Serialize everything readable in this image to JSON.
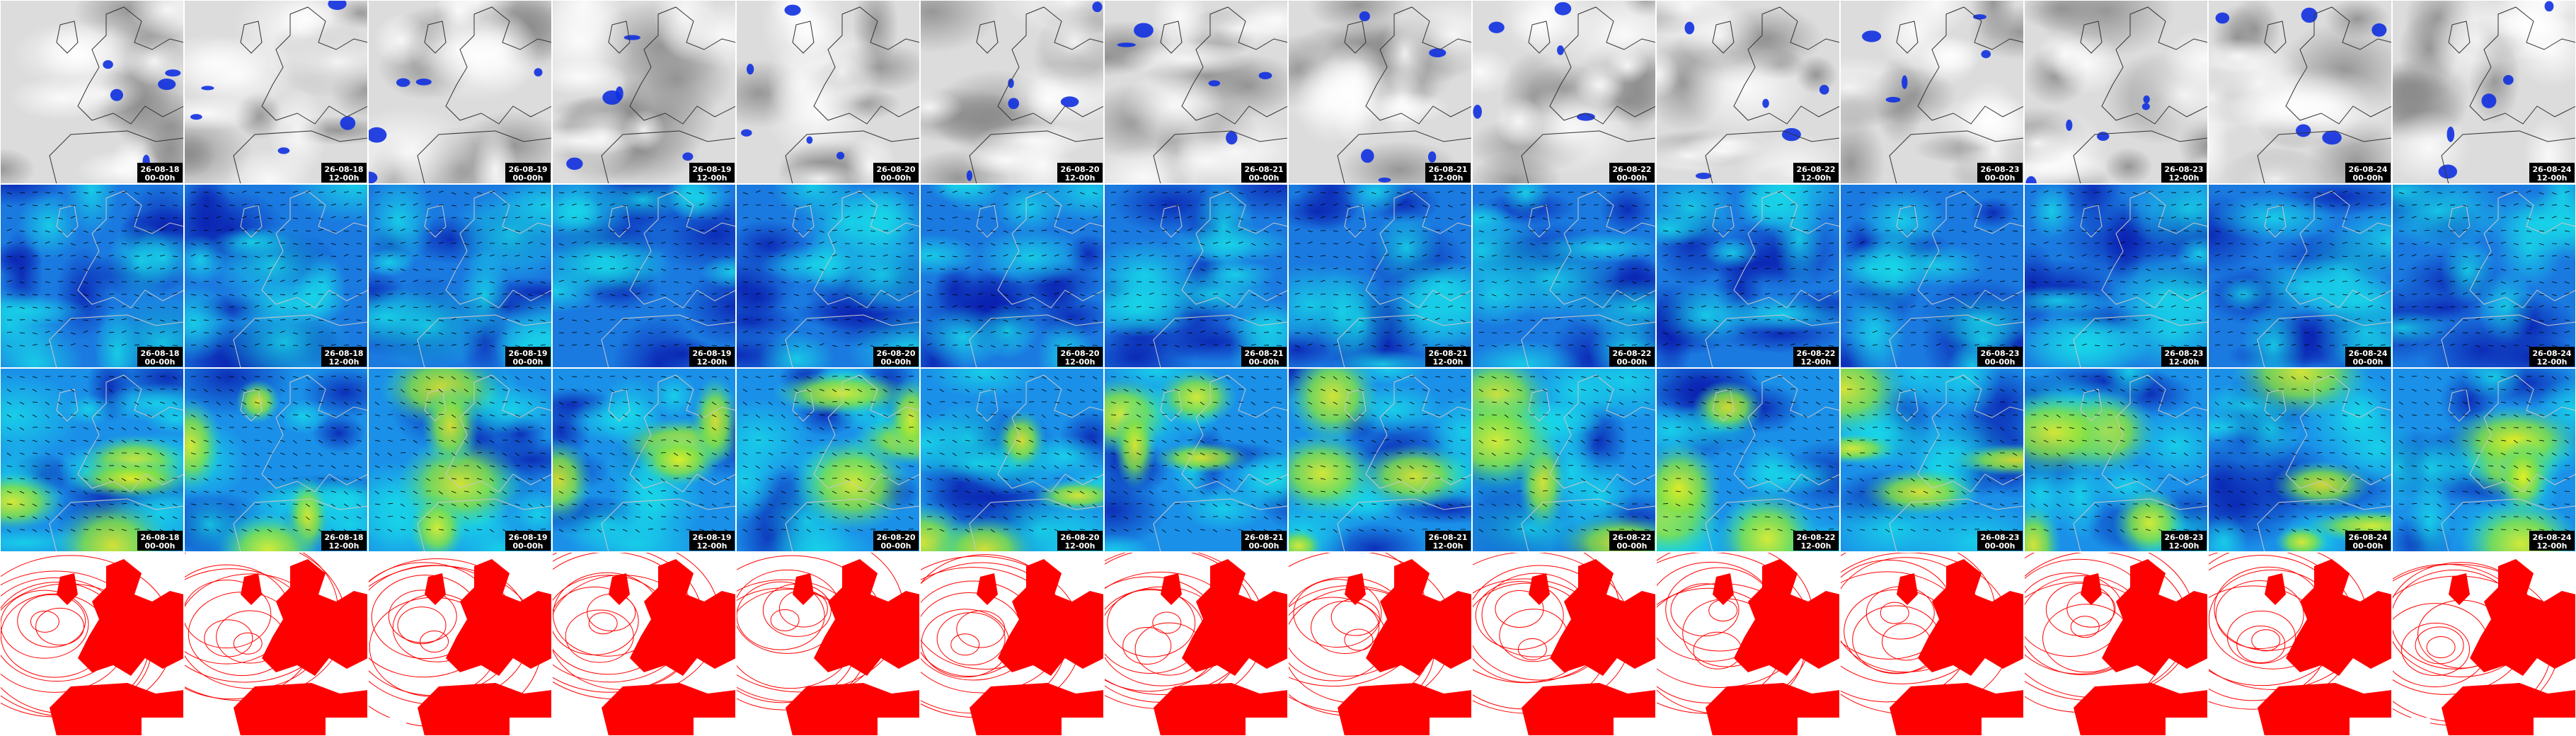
{
  "tiles": {
    "columns": [
      {
        "date": "26-08-18",
        "time": "00-00h"
      },
      {
        "date": "26-08-18",
        "time": "12-00h"
      },
      {
        "date": "26-08-19",
        "time": "00-00h"
      },
      {
        "date": "26-08-19",
        "time": "12-00h"
      },
      {
        "date": "26-08-20",
        "time": "00-00h"
      },
      {
        "date": "26-08-20",
        "time": "12-00h"
      },
      {
        "date": "26-08-21",
        "time": "00-00h"
      },
      {
        "date": "26-08-21",
        "time": "12-00h"
      },
      {
        "date": "26-08-22",
        "time": "00-00h"
      },
      {
        "date": "26-08-22",
        "time": "12-00h"
      },
      {
        "date": "26-08-23",
        "time": "00-00h"
      },
      {
        "date": "26-08-23",
        "time": "12-00h"
      },
      {
        "date": "26-08-24",
        "time": "00-00h"
      },
      {
        "date": "26-08-24",
        "time": "12-00h"
      }
    ]
  }
}
